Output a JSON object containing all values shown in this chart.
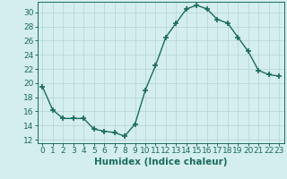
{
  "x": [
    0,
    1,
    2,
    3,
    4,
    5,
    6,
    7,
    8,
    9,
    10,
    11,
    12,
    13,
    14,
    15,
    16,
    17,
    18,
    19,
    20,
    21,
    22,
    23
  ],
  "y": [
    19.5,
    16.2,
    15.0,
    15.0,
    15.0,
    13.5,
    13.2,
    13.0,
    12.5,
    14.2,
    19.0,
    22.5,
    26.5,
    28.5,
    30.5,
    31.0,
    30.5,
    29.0,
    28.5,
    26.5,
    24.5,
    21.8,
    21.2,
    21.0
  ],
  "line_color": "#1a6b5e",
  "marker": "+",
  "markersize": 4,
  "linewidth": 1.0,
  "bg_color": "#d4eeed",
  "grid_color": "#b8d8d4",
  "xlabel": "Humidex (Indice chaleur)",
  "ylim": [
    11.5,
    31.5
  ],
  "xlim": [
    -0.5,
    23.5
  ],
  "yticks": [
    12,
    14,
    16,
    18,
    20,
    22,
    24,
    26,
    28,
    30
  ],
  "xticks": [
    0,
    1,
    2,
    3,
    4,
    5,
    6,
    7,
    8,
    9,
    10,
    11,
    12,
    13,
    14,
    15,
    16,
    17,
    18,
    19,
    20,
    21,
    22,
    23
  ],
  "tick_fontsize": 6.5,
  "label_fontsize": 7.5
}
